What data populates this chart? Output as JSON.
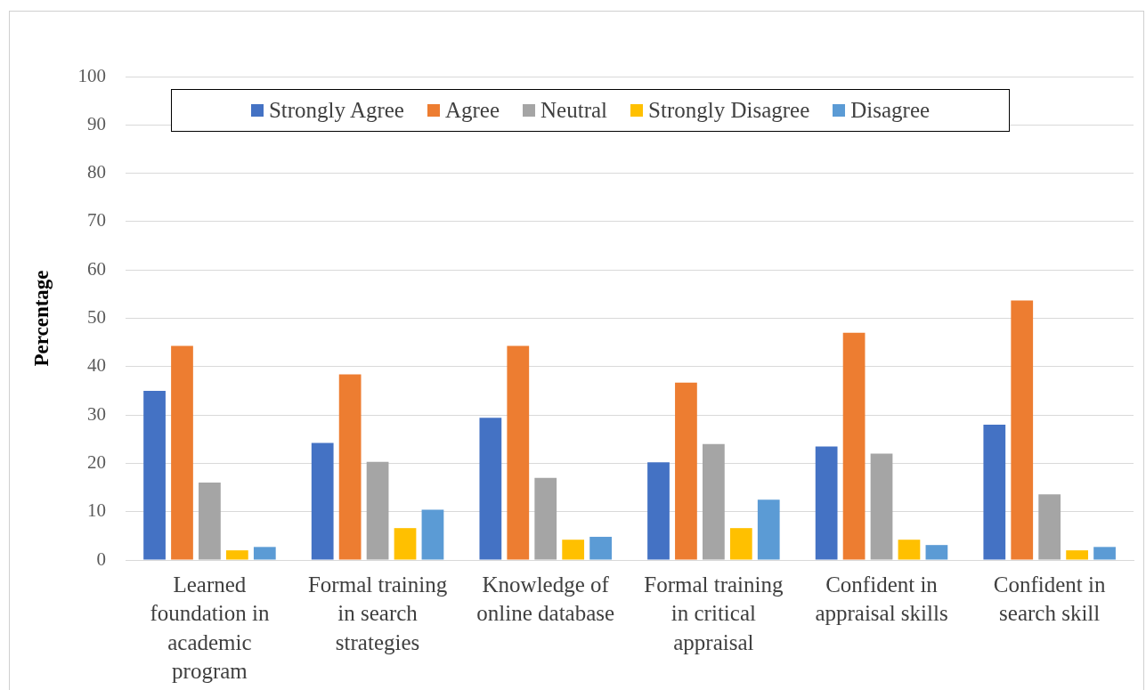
{
  "chart_data": {
    "type": "bar",
    "ylabel": "Percentage",
    "categories": [
      "Learned foundation in academic program",
      "Formal training in search strategies",
      "Knowledge of online database",
      "Formal training in critical appraisal",
      "Confident in appraisal skills",
      "Confident in search skill"
    ],
    "series": [
      {
        "name": "Strongly Agree",
        "color": "#4472c4",
        "values": [
          35,
          24.2,
          29.4,
          20.2,
          23.5,
          28
        ]
      },
      {
        "name": "Agree",
        "color": "#ed7d31",
        "values": [
          44.3,
          38.4,
          44.3,
          36.7,
          47,
          53.7
        ]
      },
      {
        "name": "Neutral",
        "color": "#a5a5a5",
        "values": [
          16,
          20.3,
          17,
          24,
          22,
          13.6
        ]
      },
      {
        "name": "Strongly Disagree",
        "color": "#ffc000",
        "values": [
          2,
          6.6,
          4.2,
          6.6,
          4.2,
          2
        ]
      },
      {
        "name": "Disagree",
        "color": "#5b9bd5",
        "values": [
          2.7,
          10.4,
          4.8,
          12.5,
          3.1,
          2.7
        ]
      }
    ],
    "ylim": [
      0,
      100
    ],
    "yticks": [
      0,
      10,
      20,
      30,
      40,
      50,
      60,
      70,
      80,
      90,
      100
    ],
    "grid": "y",
    "legend": "top"
  }
}
